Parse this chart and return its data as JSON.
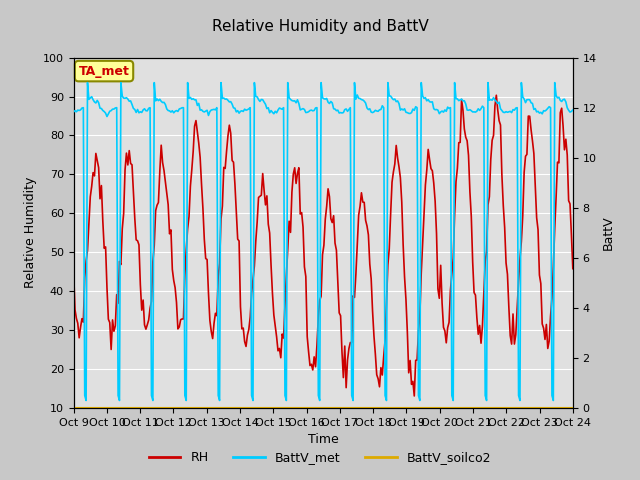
{
  "title": "Relative Humidity and BattV",
  "xlabel": "Time",
  "ylabel_left": "Relative Humidity",
  "ylabel_right": "BattV",
  "ylim_left": [
    10,
    100
  ],
  "ylim_right": [
    0,
    14
  ],
  "yticks_left": [
    10,
    20,
    30,
    40,
    50,
    60,
    70,
    80,
    90,
    100
  ],
  "yticks_right": [
    0,
    2,
    4,
    6,
    8,
    10,
    12,
    14
  ],
  "x_tick_labels": [
    "Oct 9",
    "Oct 10",
    "Oct 11",
    "Oct 12",
    "Oct 13",
    "Oct 14",
    "Oct 15",
    "Oct 16",
    "Oct 17",
    "Oct 18",
    "Oct 19",
    "Oct 20",
    "Oct 21",
    "Oct 22",
    "Oct 23",
    "Oct 24"
  ],
  "fig_bg_color": "#c8c8c8",
  "plot_bg_color": "#e0e0e0",
  "grid_color": "#ffffff",
  "rh_color": "#cc0000",
  "battv_met_color": "#00ccff",
  "battv_soilco2_color": "#ddaa00",
  "annotation_text": "TA_met",
  "annotation_box_facecolor": "#ffff99",
  "annotation_box_edgecolor": "#888800",
  "annotation_text_color": "#cc0000",
  "n_days": 15,
  "n_hours": 360,
  "legend_labels": [
    "RH",
    "BattV_met",
    "BattV_soilco2"
  ]
}
